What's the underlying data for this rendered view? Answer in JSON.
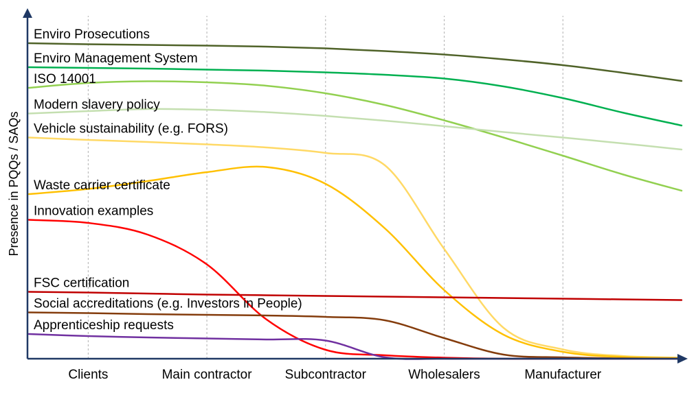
{
  "chart_data": {
    "type": "line",
    "ylabel": "Presence in PQQs / SAQs",
    "xlabel": "",
    "grid": "vertical dashed",
    "categories": [
      "Clients",
      "Main contractor",
      "Subcontractor",
      "Wholesalers",
      "Manufacturer"
    ],
    "x": [
      0,
      0.5,
      1,
      1.5,
      2,
      2.5,
      3,
      3.5,
      4,
      4.5,
      5,
      5.5
    ],
    "ylim": [
      0,
      100
    ],
    "series": [
      {
        "name": "Enviro Prosecutions",
        "color": "#4f6228",
        "values": [
          92,
          91.7,
          91.5,
          91.3,
          91,
          90.5,
          89.7,
          88.7,
          87.3,
          85.6,
          83.4,
          81
        ]
      },
      {
        "name": "Enviro Management System",
        "color": "#00b050",
        "values": [
          85,
          84.8,
          84.6,
          84.3,
          84,
          83.5,
          82.8,
          81.7,
          79.4,
          76,
          71.8,
          68
        ]
      },
      {
        "name": "ISO 14001",
        "color": "#92d050",
        "values": [
          79,
          80.4,
          80.9,
          80.6,
          79.6,
          77.4,
          74,
          69.5,
          64.5,
          59.2,
          53.8,
          49
        ]
      },
      {
        "name": "Modern slavery policy",
        "color": "#c4dfb0",
        "values": [
          71.5,
          72.2,
          72.8,
          72.6,
          71.9,
          70.8,
          69.4,
          67.8,
          66.1,
          64.5,
          62.8,
          61
        ]
      },
      {
        "name": "Vehicle sustainability (e.g. FORS)",
        "color": "#ffd966",
        "values": [
          64.5,
          63.8,
          63.2,
          62.5,
          61.6,
          60,
          56.4,
          32,
          9,
          2.7,
          0.8,
          0.3
        ]
      },
      {
        "name": "Waste carrier certificate",
        "color": "#ffc000",
        "values": [
          48,
          49.5,
          51.8,
          54.4,
          55.9,
          51,
          38,
          20,
          7,
          2,
          0.5,
          0.2
        ]
      },
      {
        "name": "Innovation examples",
        "color": "#ff0000",
        "values": [
          40.5,
          39.6,
          36.2,
          27.5,
          11.5,
          2.6,
          1,
          0.3,
          0,
          0,
          0,
          0
        ]
      },
      {
        "name": "FSC certification",
        "color": "#c00000",
        "values": [
          19.5,
          19.3,
          19,
          18.7,
          18.5,
          18.3,
          18.1,
          17.9,
          17.7,
          17.5,
          17.3,
          17.1
        ]
      },
      {
        "name": "Social accreditations (e.g. Investors in People)",
        "color": "#843c0c",
        "values": [
          13.5,
          13.3,
          13,
          12.8,
          12.6,
          12.2,
          11.2,
          6,
          1.2,
          0.4,
          0.1,
          0
        ]
      },
      {
        "name": "Apprenticeship requests",
        "color": "#7030a0",
        "values": [
          7.2,
          6.6,
          6.2,
          5.9,
          5.6,
          5.3,
          0.4,
          0,
          0,
          0,
          0,
          0
        ]
      }
    ]
  }
}
